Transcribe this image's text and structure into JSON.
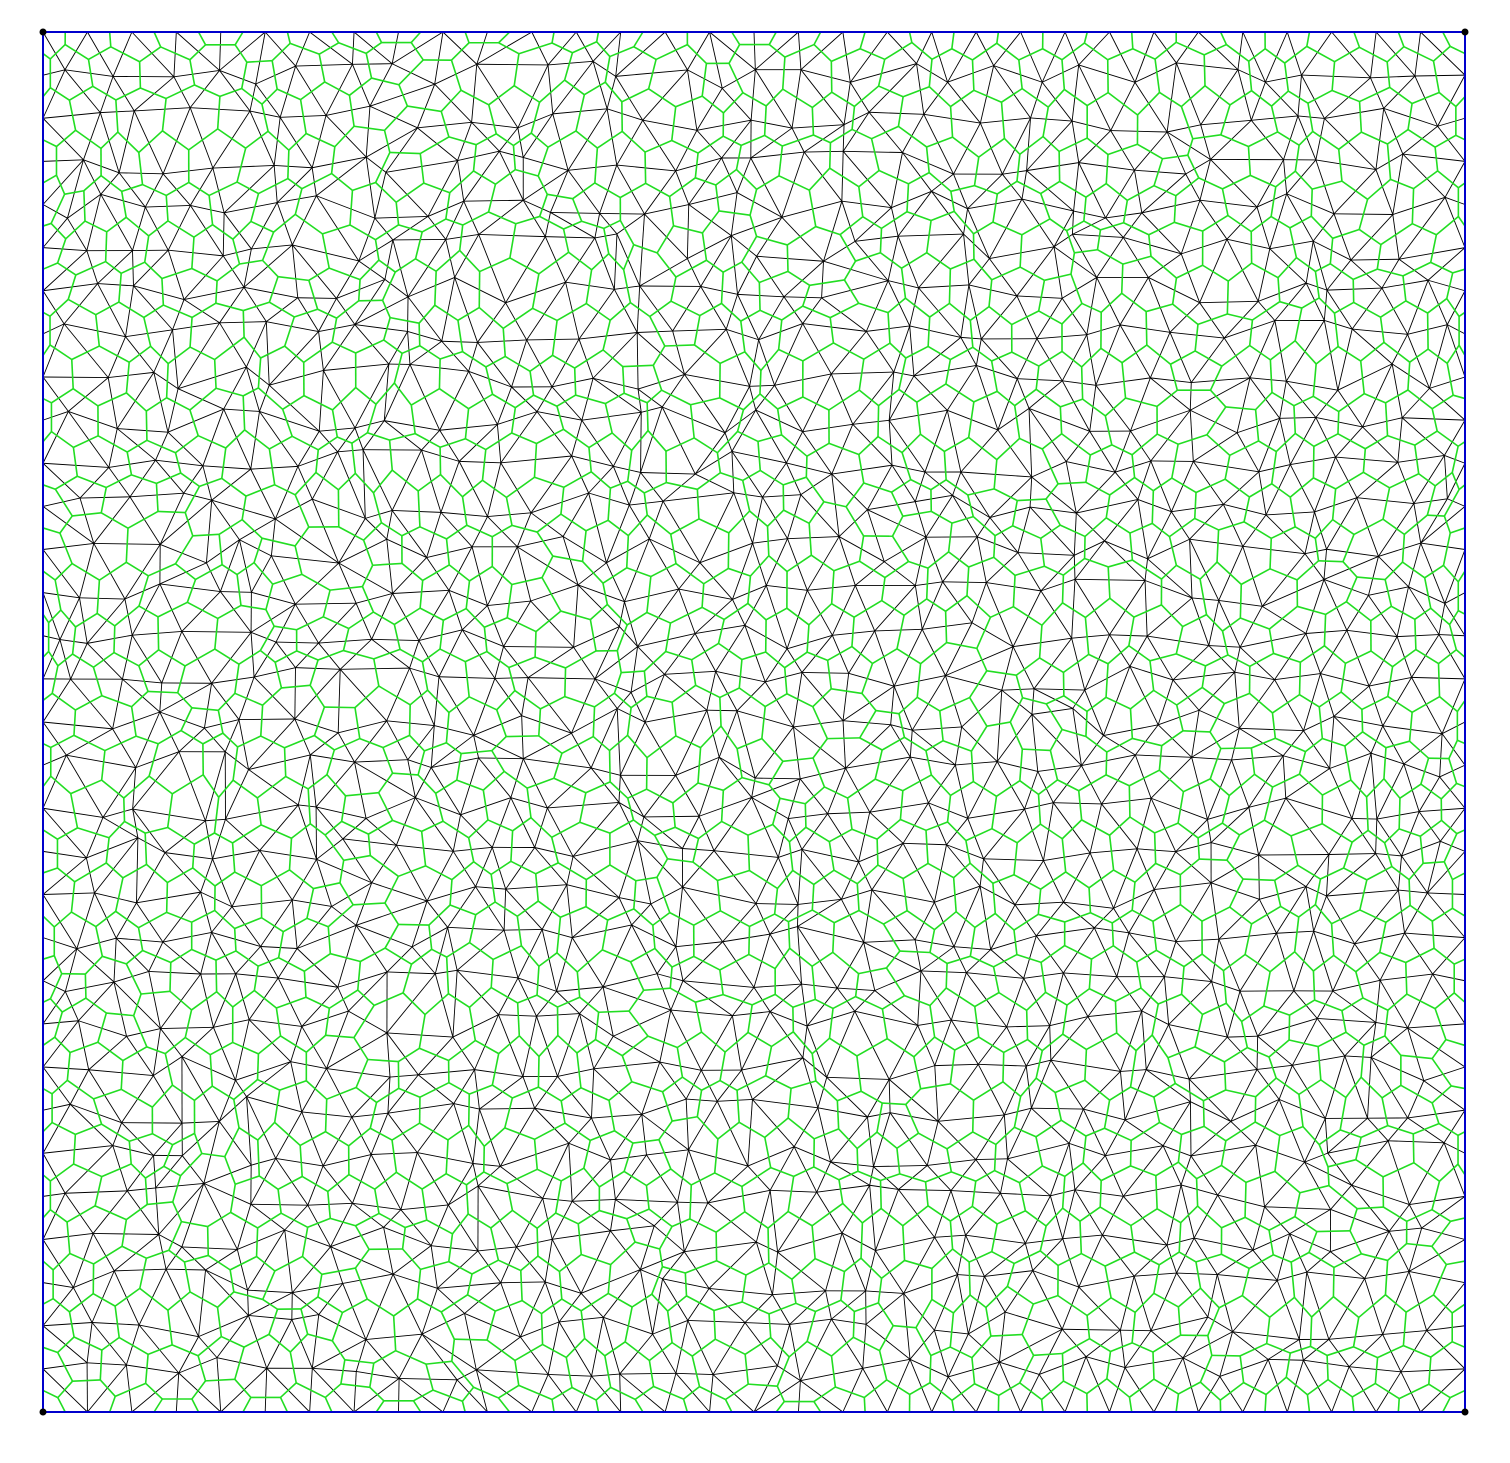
{
  "figure": {
    "type": "mesh-diagram",
    "description_visible_text": "",
    "domain_x": [
      0,
      1
    ],
    "domain_y": [
      0,
      1
    ],
    "boundary_color": "#0000cc",
    "triangle_edge_color": "#000000",
    "dual_edge_color": "#22dd22",
    "corner_marker_color": "#000000",
    "background_color": "#ffffff",
    "boundary_subdivisions": 32,
    "interior_rows": 31,
    "jitter": 0.32,
    "seed": 20231
  }
}
